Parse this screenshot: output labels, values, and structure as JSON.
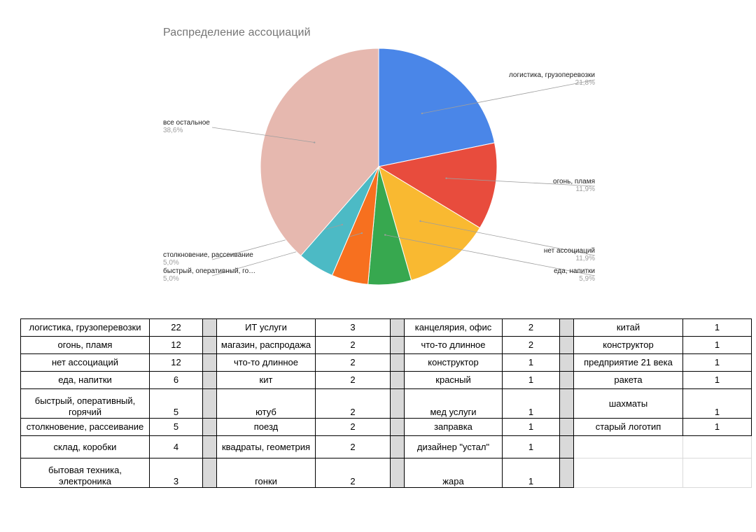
{
  "chart_data": {
    "type": "pie",
    "title": "Распределение ассоциаций",
    "slices": [
      {
        "label": "логистика, грузоперевозки",
        "value": 21.8,
        "display": "21,8%",
        "color": "#4a86e8"
      },
      {
        "label": "огонь, пламя",
        "value": 11.9,
        "display": "11,9%",
        "color": "#e84c3d"
      },
      {
        "label": "нет ассоциаций",
        "value": 11.9,
        "display": "11,9%",
        "color": "#f9b931"
      },
      {
        "label": "еда, напитки",
        "value": 5.9,
        "display": "5,9%",
        "color": "#37a84f"
      },
      {
        "label": "быстрый, оперативный, го…",
        "value": 5.0,
        "display": "5,0%",
        "color": "#f7701f"
      },
      {
        "label": "столкновение, рассеивание",
        "value": 5.0,
        "display": "5,0%",
        "color": "#4cbac5"
      },
      {
        "label": "все остальное",
        "value": 38.6,
        "display": "38,6%",
        "color": "#e6b8af"
      }
    ]
  },
  "table": {
    "rows": [
      [
        [
          "логистика, грузоперевозки",
          "22"
        ],
        [
          "ИТ услуги",
          "3"
        ],
        [
          "канцелярия, офис",
          "2"
        ],
        [
          "китай",
          "1"
        ]
      ],
      [
        [
          "огонь, пламя",
          "12"
        ],
        [
          "магазин, распродажа",
          "2"
        ],
        [
          "что-то длинное",
          "2"
        ],
        [
          "конструктор",
          "1"
        ]
      ],
      [
        [
          "нет ассоциаций",
          "12"
        ],
        [
          "что-то длинное",
          "2"
        ],
        [
          "конструктор",
          "1"
        ],
        [
          "предприятие 21 века",
          "1"
        ]
      ],
      [
        [
          "еда, напитки",
          "6"
        ],
        [
          "кит",
          "2"
        ],
        [
          "красный",
          "1"
        ],
        [
          "ракета",
          "1"
        ]
      ],
      [
        [
          "быстрый, оперативный, горячий",
          "5"
        ],
        [
          "ютуб",
          "2"
        ],
        [
          "мед услуги",
          "1"
        ],
        [
          "шахматы",
          "1"
        ]
      ],
      [
        [
          "столкновение, рассеивание",
          "5"
        ],
        [
          "поезд",
          "2"
        ],
        [
          "заправка",
          "1"
        ],
        [
          "старый логотип",
          "1"
        ]
      ],
      [
        [
          "склад, коробки",
          "4"
        ],
        [
          "квадраты, геометрия",
          "2"
        ],
        [
          "дизайнер \"устал\"",
          "1"
        ],
        [
          "",
          ""
        ]
      ],
      [
        [
          "бытовая техника, электроника",
          "3"
        ],
        [
          "гонки",
          "2"
        ],
        [
          "жара",
          "1"
        ],
        [
          "",
          ""
        ]
      ]
    ]
  }
}
